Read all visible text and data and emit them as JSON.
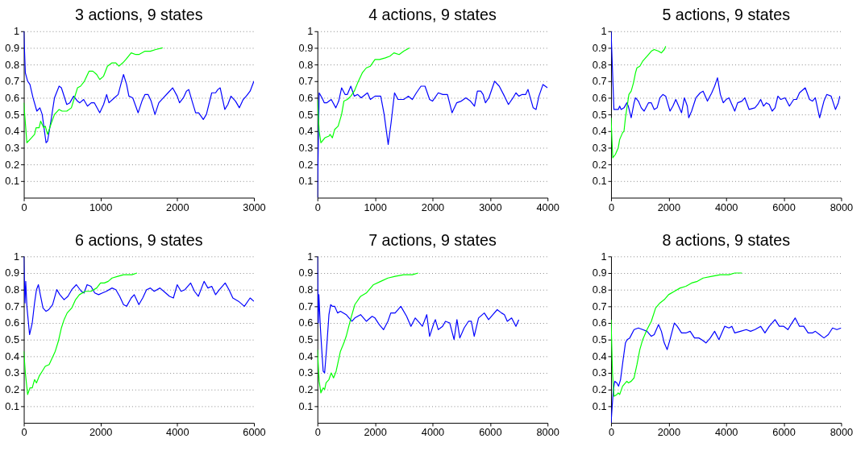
{
  "chart_data": [
    {
      "type": "line",
      "title": "3 actions, 9 states",
      "xlim": [
        0,
        3000
      ],
      "xticks": [
        0,
        1000,
        2000,
        3000
      ],
      "ylim": [
        0,
        1
      ],
      "yticks": [
        0.1,
        0.2,
        0.3,
        0.4,
        0.5,
        0.6,
        0.7,
        0.8,
        0.9,
        1
      ],
      "grid": "y",
      "series": [
        {
          "color": "#0000ff",
          "x": [
            0,
            20,
            50,
            80,
            120,
            170,
            210,
            240,
            290,
            310,
            360,
            400,
            460,
            490,
            560,
            600,
            650,
            700,
            730,
            780,
            830,
            880,
            920,
            990,
            1040,
            1080,
            1110,
            1180,
            1230,
            1270,
            1300,
            1340,
            1370,
            1420,
            1490,
            1540,
            1580,
            1620,
            1660,
            1710,
            1760,
            1820,
            1880,
            1940,
            2000,
            2030,
            2080,
            2120,
            2150,
            2200,
            2240,
            2280,
            2340,
            2380,
            2450,
            2500,
            2530,
            2560,
            2620,
            2660,
            2700,
            2760,
            2810,
            2860,
            2900,
            2950,
            3000
          ],
          "values": [
            1.0,
            0.75,
            0.7,
            0.68,
            0.6,
            0.52,
            0.54,
            0.5,
            0.33,
            0.34,
            0.48,
            0.6,
            0.67,
            0.66,
            0.56,
            0.57,
            0.61,
            0.58,
            0.57,
            0.59,
            0.55,
            0.57,
            0.57,
            0.51,
            0.56,
            0.62,
            0.57,
            0.6,
            0.62,
            0.69,
            0.74,
            0.68,
            0.61,
            0.6,
            0.51,
            0.58,
            0.62,
            0.62,
            0.58,
            0.5,
            0.57,
            0.6,
            0.63,
            0.66,
            0.61,
            0.57,
            0.6,
            0.64,
            0.65,
            0.57,
            0.51,
            0.51,
            0.47,
            0.5,
            0.63,
            0.63,
            0.65,
            0.66,
            0.53,
            0.56,
            0.61,
            0.58,
            0.54,
            0.59,
            0.61,
            0.64,
            0.7
          ]
        },
        {
          "color": "#00ff00",
          "x": [
            0,
            20,
            40,
            100,
            140,
            160,
            200,
            220,
            260,
            280,
            310,
            360,
            400,
            460,
            500,
            560,
            620,
            660,
            700,
            740,
            790,
            850,
            900,
            950,
            990,
            1040,
            1090,
            1150,
            1200,
            1240,
            1290,
            1330,
            1400,
            1460,
            1500,
            1580,
            1650,
            1720,
            1810
          ],
          "values": [
            0.57,
            0.45,
            0.33,
            0.36,
            0.38,
            0.42,
            0.42,
            0.46,
            0.42,
            0.43,
            0.38,
            0.45,
            0.5,
            0.53,
            0.52,
            0.52,
            0.54,
            0.6,
            0.66,
            0.67,
            0.7,
            0.76,
            0.76,
            0.74,
            0.71,
            0.73,
            0.79,
            0.81,
            0.81,
            0.79,
            0.81,
            0.83,
            0.87,
            0.86,
            0.86,
            0.88,
            0.88,
            0.89,
            0.9
          ]
        }
      ]
    },
    {
      "type": "line",
      "title": "4 actions, 9 states",
      "xlim": [
        0,
        4000
      ],
      "xticks": [
        0,
        1000,
        2000,
        3000,
        4000
      ],
      "ylim": [
        0,
        1
      ],
      "yticks": [
        0.1,
        0.2,
        0.3,
        0.4,
        0.5,
        0.6,
        0.7,
        0.8,
        0.9,
        1
      ],
      "grid": "y",
      "series": [
        {
          "color": "#0000ff",
          "x": [
            0,
            30,
            80,
            120,
            160,
            240,
            320,
            370,
            420,
            480,
            520,
            580,
            640,
            700,
            760,
            870,
            920,
            1000,
            1100,
            1160,
            1230,
            1280,
            1340,
            1400,
            1450,
            1500,
            1580,
            1650,
            1720,
            1800,
            1870,
            1950,
            2000,
            2100,
            2180,
            2260,
            2340,
            2420,
            2500,
            2580,
            2660,
            2730,
            2780,
            2840,
            2880,
            2920,
            2980,
            3080,
            3160,
            3250,
            3320,
            3400,
            3450,
            3500,
            3560,
            3620,
            3660,
            3700,
            3750,
            3800,
            3850,
            3920,
            3960,
            4000
          ],
          "values": [
            0.0,
            0.63,
            0.6,
            0.57,
            0.57,
            0.59,
            0.54,
            0.58,
            0.66,
            0.62,
            0.62,
            0.67,
            0.61,
            0.62,
            0.6,
            0.63,
            0.59,
            0.61,
            0.61,
            0.5,
            0.32,
            0.45,
            0.63,
            0.59,
            0.59,
            0.59,
            0.61,
            0.59,
            0.63,
            0.67,
            0.67,
            0.59,
            0.58,
            0.63,
            0.62,
            0.62,
            0.51,
            0.57,
            0.58,
            0.6,
            0.58,
            0.55,
            0.64,
            0.64,
            0.62,
            0.57,
            0.6,
            0.7,
            0.67,
            0.61,
            0.56,
            0.6,
            0.63,
            0.61,
            0.62,
            0.62,
            0.65,
            0.6,
            0.54,
            0.53,
            0.61,
            0.68,
            0.67,
            0.66
          ]
        },
        {
          "color": "#00ff00",
          "x": [
            0,
            30,
            60,
            130,
            200,
            220,
            260,
            300,
            360,
            420,
            460,
            520,
            580,
            640,
            700,
            780,
            850,
            920,
            1000,
            1080,
            1180,
            1260,
            1330,
            1420,
            1500,
            1600
          ],
          "values": [
            0.59,
            0.4,
            0.33,
            0.36,
            0.37,
            0.38,
            0.36,
            0.41,
            0.43,
            0.5,
            0.58,
            0.59,
            0.61,
            0.64,
            0.69,
            0.75,
            0.78,
            0.79,
            0.83,
            0.83,
            0.84,
            0.85,
            0.87,
            0.86,
            0.88,
            0.9
          ]
        }
      ]
    },
    {
      "type": "line",
      "title": "5 actions, 9 states",
      "xlim": [
        0,
        8000
      ],
      "xticks": [
        0,
        2000,
        4000,
        6000,
        8000
      ],
      "ylim": [
        0,
        1
      ],
      "yticks": [
        0.1,
        0.2,
        0.3,
        0.4,
        0.5,
        0.6,
        0.7,
        0.8,
        0.9,
        1
      ],
      "grid": "y",
      "series": [
        {
          "color": "#0000ff",
          "x": [
            0,
            60,
            100,
            250,
            300,
            350,
            450,
            550,
            600,
            700,
            800,
            850,
            950,
            1050,
            1150,
            1300,
            1400,
            1500,
            1600,
            1700,
            1800,
            1900,
            2000,
            2050,
            2150,
            2250,
            2350,
            2450,
            2550,
            2650,
            2700,
            2800,
            2950,
            3100,
            3200,
            3350,
            3500,
            3600,
            3700,
            3800,
            3900,
            4000,
            4100,
            4200,
            4300,
            4400,
            4550,
            4650,
            4800,
            5000,
            5100,
            5200,
            5300,
            5400,
            5500,
            5600,
            5700,
            5800,
            5900,
            6050,
            6200,
            6350,
            6450,
            6550,
            6750,
            6900,
            7000,
            7100,
            7250,
            7400,
            7500,
            7650,
            7800,
            7900,
            7950
          ],
          "values": [
            1.0,
            0.72,
            0.53,
            0.53,
            0.55,
            0.53,
            0.54,
            0.57,
            0.55,
            0.48,
            0.57,
            0.6,
            0.58,
            0.54,
            0.52,
            0.57,
            0.57,
            0.53,
            0.54,
            0.6,
            0.62,
            0.61,
            0.55,
            0.52,
            0.55,
            0.59,
            0.55,
            0.51,
            0.6,
            0.55,
            0.48,
            0.52,
            0.6,
            0.63,
            0.64,
            0.58,
            0.63,
            0.67,
            0.72,
            0.62,
            0.57,
            0.59,
            0.6,
            0.56,
            0.52,
            0.57,
            0.58,
            0.6,
            0.53,
            0.54,
            0.56,
            0.59,
            0.55,
            0.57,
            0.56,
            0.52,
            0.54,
            0.61,
            0.59,
            0.6,
            0.55,
            0.59,
            0.59,
            0.63,
            0.66,
            0.59,
            0.58,
            0.6,
            0.48,
            0.58,
            0.62,
            0.61,
            0.53,
            0.57,
            0.61
          ]
        },
        {
          "color": "#00ff00",
          "x": [
            0,
            30,
            60,
            150,
            250,
            300,
            400,
            450,
            500,
            560,
            620,
            700,
            780,
            850,
            900,
            1000,
            1100,
            1250,
            1400,
            1500,
            1650,
            1750,
            1850,
            1900
          ],
          "values": [
            0.48,
            0.35,
            0.24,
            0.26,
            0.3,
            0.35,
            0.39,
            0.4,
            0.48,
            0.55,
            0.62,
            0.64,
            0.69,
            0.75,
            0.78,
            0.79,
            0.82,
            0.85,
            0.88,
            0.89,
            0.88,
            0.87,
            0.89,
            0.91
          ]
        }
      ]
    },
    {
      "type": "line",
      "title": "6 actions, 9 states",
      "xlim": [
        0,
        6000
      ],
      "xticks": [
        0,
        2000,
        4000,
        6000
      ],
      "ylim": [
        0,
        1
      ],
      "yticks": [
        0.1,
        0.2,
        0.3,
        0.4,
        0.5,
        0.6,
        0.7,
        0.8,
        0.9,
        1
      ],
      "grid": "y",
      "series": [
        {
          "color": "#0000ff",
          "x": [
            0,
            30,
            50,
            80,
            150,
            220,
            280,
            330,
            380,
            430,
            500,
            580,
            650,
            750,
            860,
            940,
            1050,
            1150,
            1250,
            1370,
            1500,
            1570,
            1650,
            1750,
            1850,
            1950,
            2050,
            2150,
            2300,
            2400,
            2500,
            2600,
            2680,
            2800,
            2880,
            3000,
            3100,
            3200,
            3300,
            3400,
            3550,
            3650,
            3800,
            3900,
            4000,
            4100,
            4200,
            4350,
            4450,
            4550,
            4700,
            4800,
            4900,
            5000,
            5100,
            5250,
            5350,
            5450,
            5600,
            5750,
            5900,
            6000
          ],
          "values": [
            1.0,
            0.72,
            0.85,
            0.7,
            0.53,
            0.6,
            0.72,
            0.8,
            0.83,
            0.77,
            0.69,
            0.67,
            0.68,
            0.71,
            0.8,
            0.77,
            0.74,
            0.76,
            0.8,
            0.83,
            0.79,
            0.78,
            0.83,
            0.82,
            0.78,
            0.77,
            0.78,
            0.79,
            0.81,
            0.8,
            0.76,
            0.71,
            0.7,
            0.75,
            0.77,
            0.71,
            0.75,
            0.8,
            0.81,
            0.79,
            0.81,
            0.79,
            0.76,
            0.75,
            0.83,
            0.79,
            0.8,
            0.84,
            0.79,
            0.76,
            0.85,
            0.81,
            0.82,
            0.77,
            0.8,
            0.84,
            0.8,
            0.75,
            0.73,
            0.7,
            0.75,
            0.73
          ]
        },
        {
          "color": "#00ff00",
          "x": [
            0,
            40,
            100,
            160,
            220,
            280,
            330,
            400,
            480,
            560,
            660,
            740,
            820,
            900,
            980,
            1050,
            1130,
            1250,
            1350,
            1450,
            1600,
            1750,
            1900,
            2000,
            2100,
            2200,
            2300,
            2450,
            2600,
            2750,
            2820,
            2950
          ],
          "values": [
            0.43,
            0.3,
            0.17,
            0.21,
            0.21,
            0.26,
            0.24,
            0.28,
            0.31,
            0.34,
            0.35,
            0.39,
            0.43,
            0.49,
            0.57,
            0.62,
            0.66,
            0.69,
            0.74,
            0.77,
            0.79,
            0.79,
            0.81,
            0.84,
            0.84,
            0.85,
            0.87,
            0.88,
            0.89,
            0.89,
            0.89,
            0.9
          ]
        }
      ]
    },
    {
      "type": "line",
      "title": "7 actions, 9 states",
      "xlim": [
        0,
        8000
      ],
      "xticks": [
        0,
        2000,
        4000,
        6000,
        8000
      ],
      "ylim": [
        0,
        1
      ],
      "yticks": [
        0.1,
        0.2,
        0.3,
        0.4,
        0.5,
        0.6,
        0.7,
        0.8,
        0.9,
        1
      ],
      "grid": "y",
      "series": [
        {
          "color": "#0000ff",
          "x": [
            0,
            30,
            50,
            100,
            150,
            200,
            250,
            320,
            400,
            460,
            520,
            600,
            700,
            800,
            1000,
            1100,
            1200,
            1300,
            1500,
            1700,
            1900,
            2000,
            2150,
            2300,
            2450,
            2550,
            2700,
            2900,
            3100,
            3250,
            3400,
            3500,
            3650,
            3800,
            3900,
            4050,
            4100,
            4200,
            4350,
            4450,
            4600,
            4750,
            4850,
            4950,
            5100,
            5250,
            5350,
            5450,
            5600,
            5800,
            5950,
            6100,
            6250,
            6400,
            6500,
            6600,
            6750,
            6900,
            7000
          ],
          "values": [
            1.0,
            0.6,
            0.77,
            0.58,
            0.44,
            0.31,
            0.3,
            0.45,
            0.65,
            0.71,
            0.7,
            0.7,
            0.66,
            0.67,
            0.65,
            0.63,
            0.61,
            0.63,
            0.65,
            0.61,
            0.64,
            0.63,
            0.59,
            0.56,
            0.61,
            0.66,
            0.66,
            0.7,
            0.64,
            0.58,
            0.63,
            0.61,
            0.58,
            0.65,
            0.52,
            0.6,
            0.62,
            0.56,
            0.58,
            0.61,
            0.6,
            0.5,
            0.62,
            0.51,
            0.57,
            0.61,
            0.61,
            0.52,
            0.63,
            0.66,
            0.62,
            0.65,
            0.68,
            0.66,
            0.65,
            0.61,
            0.63,
            0.58,
            0.62
          ]
        },
        {
          "color": "#00ff00",
          "x": [
            0,
            60,
            120,
            200,
            250,
            300,
            400,
            480,
            560,
            650,
            800,
            920,
            1000,
            1150,
            1300,
            1500,
            1700,
            1800,
            1950,
            2200,
            2450,
            2700,
            3000,
            3300,
            3500
          ],
          "values": [
            0.44,
            0.25,
            0.18,
            0.21,
            0.2,
            0.24,
            0.26,
            0.3,
            0.27,
            0.31,
            0.43,
            0.48,
            0.52,
            0.62,
            0.71,
            0.76,
            0.78,
            0.8,
            0.83,
            0.85,
            0.87,
            0.88,
            0.89,
            0.89,
            0.9
          ]
        }
      ]
    },
    {
      "type": "line",
      "title": "8 actions, 9 states",
      "xlim": [
        0,
        8000
      ],
      "xticks": [
        0,
        2000,
        4000,
        6000,
        8000
      ],
      "ylim": [
        0,
        1
      ],
      "yticks": [
        0.1,
        0.2,
        0.3,
        0.4,
        0.5,
        0.6,
        0.7,
        0.8,
        0.9,
        1
      ],
      "grid": "y",
      "series": [
        {
          "color": "#0000ff",
          "x": [
            0,
            40,
            80,
            130,
            200,
            260,
            330,
            420,
            500,
            560,
            650,
            800,
            950,
            1100,
            1250,
            1400,
            1500,
            1650,
            1750,
            1850,
            1950,
            2050,
            2200,
            2300,
            2450,
            2600,
            2750,
            2900,
            3050,
            3150,
            3300,
            3450,
            3600,
            3750,
            3850,
            3950,
            4100,
            4200,
            4300,
            4500,
            4700,
            4850,
            5000,
            5200,
            5350,
            5500,
            5700,
            5850,
            6000,
            6150,
            6250,
            6400,
            6550,
            6700,
            6850,
            7000,
            7100,
            7250,
            7400,
            7550,
            7700,
            7850,
            8000
          ],
          "values": [
            0.0,
            0.1,
            0.2,
            0.25,
            0.24,
            0.22,
            0.26,
            0.38,
            0.48,
            0.5,
            0.51,
            0.56,
            0.57,
            0.56,
            0.55,
            0.52,
            0.53,
            0.59,
            0.55,
            0.48,
            0.44,
            0.5,
            0.6,
            0.58,
            0.54,
            0.54,
            0.55,
            0.51,
            0.51,
            0.5,
            0.48,
            0.51,
            0.55,
            0.5,
            0.54,
            0.58,
            0.57,
            0.58,
            0.54,
            0.55,
            0.56,
            0.55,
            0.56,
            0.58,
            0.54,
            0.58,
            0.62,
            0.58,
            0.58,
            0.56,
            0.59,
            0.63,
            0.58,
            0.58,
            0.54,
            0.54,
            0.55,
            0.53,
            0.51,
            0.53,
            0.57,
            0.56,
            0.57
          ]
        },
        {
          "color": "#00ff00",
          "x": [
            0,
            50,
            100,
            200,
            250,
            300,
            400,
            500,
            550,
            600,
            700,
            800,
            900,
            1000,
            1100,
            1250,
            1400,
            1550,
            1700,
            1850,
            2000,
            2200,
            2400,
            2600,
            2800,
            3000,
            3200,
            3500,
            3800,
            4100,
            4300,
            4550
          ],
          "values": [
            0.62,
            0.3,
            0.16,
            0.17,
            0.18,
            0.17,
            0.22,
            0.24,
            0.25,
            0.24,
            0.25,
            0.27,
            0.35,
            0.44,
            0.5,
            0.56,
            0.61,
            0.69,
            0.72,
            0.74,
            0.77,
            0.79,
            0.81,
            0.82,
            0.84,
            0.85,
            0.87,
            0.88,
            0.89,
            0.89,
            0.9,
            0.9
          ]
        }
      ]
    }
  ]
}
